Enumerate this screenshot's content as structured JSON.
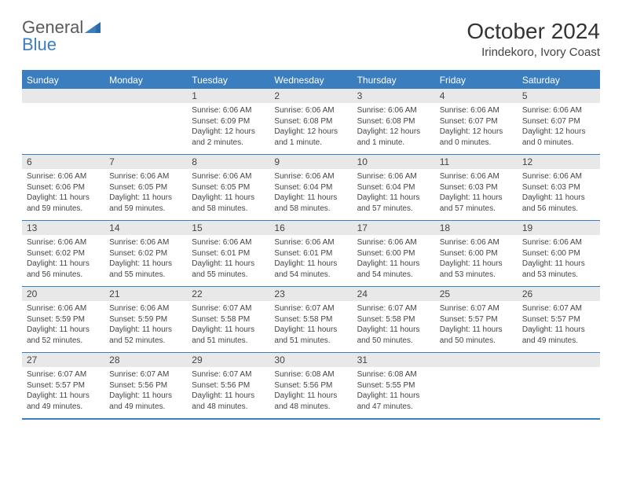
{
  "logo": {
    "text1": "General",
    "text2": "Blue"
  },
  "title": "October 2024",
  "location": "Irindekoro, Ivory Coast",
  "colors": {
    "brand": "#3b7ec0",
    "gray_bg": "#e8e8e8",
    "text": "#444444",
    "logo_gray": "#5a5a5a"
  },
  "days_of_week": [
    "Sunday",
    "Monday",
    "Tuesday",
    "Wednesday",
    "Thursday",
    "Friday",
    "Saturday"
  ],
  "weeks": [
    {
      "nums": [
        "",
        "",
        "1",
        "2",
        "3",
        "4",
        "5"
      ],
      "cells": [
        {
          "sunrise": "",
          "sunset": "",
          "daylight": ""
        },
        {
          "sunrise": "",
          "sunset": "",
          "daylight": ""
        },
        {
          "sunrise": "Sunrise: 6:06 AM",
          "sunset": "Sunset: 6:09 PM",
          "daylight": "Daylight: 12 hours and 2 minutes."
        },
        {
          "sunrise": "Sunrise: 6:06 AM",
          "sunset": "Sunset: 6:08 PM",
          "daylight": "Daylight: 12 hours and 1 minute."
        },
        {
          "sunrise": "Sunrise: 6:06 AM",
          "sunset": "Sunset: 6:08 PM",
          "daylight": "Daylight: 12 hours and 1 minute."
        },
        {
          "sunrise": "Sunrise: 6:06 AM",
          "sunset": "Sunset: 6:07 PM",
          "daylight": "Daylight: 12 hours and 0 minutes."
        },
        {
          "sunrise": "Sunrise: 6:06 AM",
          "sunset": "Sunset: 6:07 PM",
          "daylight": "Daylight: 12 hours and 0 minutes."
        }
      ]
    },
    {
      "nums": [
        "6",
        "7",
        "8",
        "9",
        "10",
        "11",
        "12"
      ],
      "cells": [
        {
          "sunrise": "Sunrise: 6:06 AM",
          "sunset": "Sunset: 6:06 PM",
          "daylight": "Daylight: 11 hours and 59 minutes."
        },
        {
          "sunrise": "Sunrise: 6:06 AM",
          "sunset": "Sunset: 6:05 PM",
          "daylight": "Daylight: 11 hours and 59 minutes."
        },
        {
          "sunrise": "Sunrise: 6:06 AM",
          "sunset": "Sunset: 6:05 PM",
          "daylight": "Daylight: 11 hours and 58 minutes."
        },
        {
          "sunrise": "Sunrise: 6:06 AM",
          "sunset": "Sunset: 6:04 PM",
          "daylight": "Daylight: 11 hours and 58 minutes."
        },
        {
          "sunrise": "Sunrise: 6:06 AM",
          "sunset": "Sunset: 6:04 PM",
          "daylight": "Daylight: 11 hours and 57 minutes."
        },
        {
          "sunrise": "Sunrise: 6:06 AM",
          "sunset": "Sunset: 6:03 PM",
          "daylight": "Daylight: 11 hours and 57 minutes."
        },
        {
          "sunrise": "Sunrise: 6:06 AM",
          "sunset": "Sunset: 6:03 PM",
          "daylight": "Daylight: 11 hours and 56 minutes."
        }
      ]
    },
    {
      "nums": [
        "13",
        "14",
        "15",
        "16",
        "17",
        "18",
        "19"
      ],
      "cells": [
        {
          "sunrise": "Sunrise: 6:06 AM",
          "sunset": "Sunset: 6:02 PM",
          "daylight": "Daylight: 11 hours and 56 minutes."
        },
        {
          "sunrise": "Sunrise: 6:06 AM",
          "sunset": "Sunset: 6:02 PM",
          "daylight": "Daylight: 11 hours and 55 minutes."
        },
        {
          "sunrise": "Sunrise: 6:06 AM",
          "sunset": "Sunset: 6:01 PM",
          "daylight": "Daylight: 11 hours and 55 minutes."
        },
        {
          "sunrise": "Sunrise: 6:06 AM",
          "sunset": "Sunset: 6:01 PM",
          "daylight": "Daylight: 11 hours and 54 minutes."
        },
        {
          "sunrise": "Sunrise: 6:06 AM",
          "sunset": "Sunset: 6:00 PM",
          "daylight": "Daylight: 11 hours and 54 minutes."
        },
        {
          "sunrise": "Sunrise: 6:06 AM",
          "sunset": "Sunset: 6:00 PM",
          "daylight": "Daylight: 11 hours and 53 minutes."
        },
        {
          "sunrise": "Sunrise: 6:06 AM",
          "sunset": "Sunset: 6:00 PM",
          "daylight": "Daylight: 11 hours and 53 minutes."
        }
      ]
    },
    {
      "nums": [
        "20",
        "21",
        "22",
        "23",
        "24",
        "25",
        "26"
      ],
      "cells": [
        {
          "sunrise": "Sunrise: 6:06 AM",
          "sunset": "Sunset: 5:59 PM",
          "daylight": "Daylight: 11 hours and 52 minutes."
        },
        {
          "sunrise": "Sunrise: 6:06 AM",
          "sunset": "Sunset: 5:59 PM",
          "daylight": "Daylight: 11 hours and 52 minutes."
        },
        {
          "sunrise": "Sunrise: 6:07 AM",
          "sunset": "Sunset: 5:58 PM",
          "daylight": "Daylight: 11 hours and 51 minutes."
        },
        {
          "sunrise": "Sunrise: 6:07 AM",
          "sunset": "Sunset: 5:58 PM",
          "daylight": "Daylight: 11 hours and 51 minutes."
        },
        {
          "sunrise": "Sunrise: 6:07 AM",
          "sunset": "Sunset: 5:58 PM",
          "daylight": "Daylight: 11 hours and 50 minutes."
        },
        {
          "sunrise": "Sunrise: 6:07 AM",
          "sunset": "Sunset: 5:57 PM",
          "daylight": "Daylight: 11 hours and 50 minutes."
        },
        {
          "sunrise": "Sunrise: 6:07 AM",
          "sunset": "Sunset: 5:57 PM",
          "daylight": "Daylight: 11 hours and 49 minutes."
        }
      ]
    },
    {
      "nums": [
        "27",
        "28",
        "29",
        "30",
        "31",
        "",
        ""
      ],
      "cells": [
        {
          "sunrise": "Sunrise: 6:07 AM",
          "sunset": "Sunset: 5:57 PM",
          "daylight": "Daylight: 11 hours and 49 minutes."
        },
        {
          "sunrise": "Sunrise: 6:07 AM",
          "sunset": "Sunset: 5:56 PM",
          "daylight": "Daylight: 11 hours and 49 minutes."
        },
        {
          "sunrise": "Sunrise: 6:07 AM",
          "sunset": "Sunset: 5:56 PM",
          "daylight": "Daylight: 11 hours and 48 minutes."
        },
        {
          "sunrise": "Sunrise: 6:08 AM",
          "sunset": "Sunset: 5:56 PM",
          "daylight": "Daylight: 11 hours and 48 minutes."
        },
        {
          "sunrise": "Sunrise: 6:08 AM",
          "sunset": "Sunset: 5:55 PM",
          "daylight": "Daylight: 11 hours and 47 minutes."
        },
        {
          "sunrise": "",
          "sunset": "",
          "daylight": ""
        },
        {
          "sunrise": "",
          "sunset": "",
          "daylight": ""
        }
      ]
    }
  ]
}
